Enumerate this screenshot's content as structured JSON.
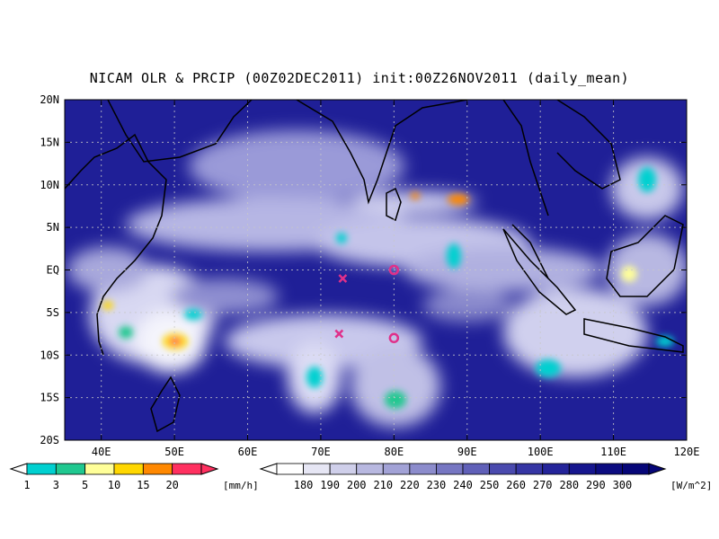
{
  "title": "NICAM OLR & PRCIP (00Z02DEC2011) init:00Z26NOV2011 (daily_mean)",
  "map": {
    "lat_labels": [
      "20N",
      "15N",
      "10N",
      "5N",
      "EQ",
      "5S",
      "10S",
      "15S",
      "20S"
    ],
    "lon_labels": [
      "40E",
      "50E",
      "60E",
      "70E",
      "80E",
      "90E",
      "100E",
      "110E",
      "120E"
    ],
    "lon_range": [
      35,
      120
    ],
    "lat_range": [
      -20,
      20
    ],
    "grid": true,
    "markers": [
      {
        "symbol": "x",
        "lon": 73,
        "lat": -1
      },
      {
        "symbol": "o",
        "lon": 80,
        "lat": 0
      },
      {
        "symbol": "x",
        "lon": 72.5,
        "lat": -7.5
      },
      {
        "symbol": "o",
        "lon": 80,
        "lat": -8
      }
    ]
  },
  "precip_legend": {
    "labels": [
      "1",
      "3",
      "5",
      "10",
      "15",
      "20"
    ],
    "unit": "[mm/h]",
    "colors": [
      "#00d0d0",
      "#20c890",
      "#ffff99",
      "#ffd700",
      "#ff8800",
      "#ff3060"
    ]
  },
  "olr_legend": {
    "labels": [
      "180",
      "190",
      "200",
      "210",
      "220",
      "230",
      "240",
      "250",
      "260",
      "270",
      "280",
      "290",
      "300"
    ],
    "unit": "[W/m^2]",
    "colors": [
      "#ffffff",
      "#e6e6f4",
      "#cfcfea",
      "#b8b8e0",
      "#a2a2d6",
      "#8c8ccc",
      "#7676c2",
      "#6060b8",
      "#4a4aae",
      "#3636a4",
      "#24249a",
      "#16168e",
      "#0c0c80",
      "#060678"
    ]
  },
  "colors": {
    "ocean_base": "#1f1f97",
    "coast": "#000000",
    "marker": "#e0308a"
  }
}
